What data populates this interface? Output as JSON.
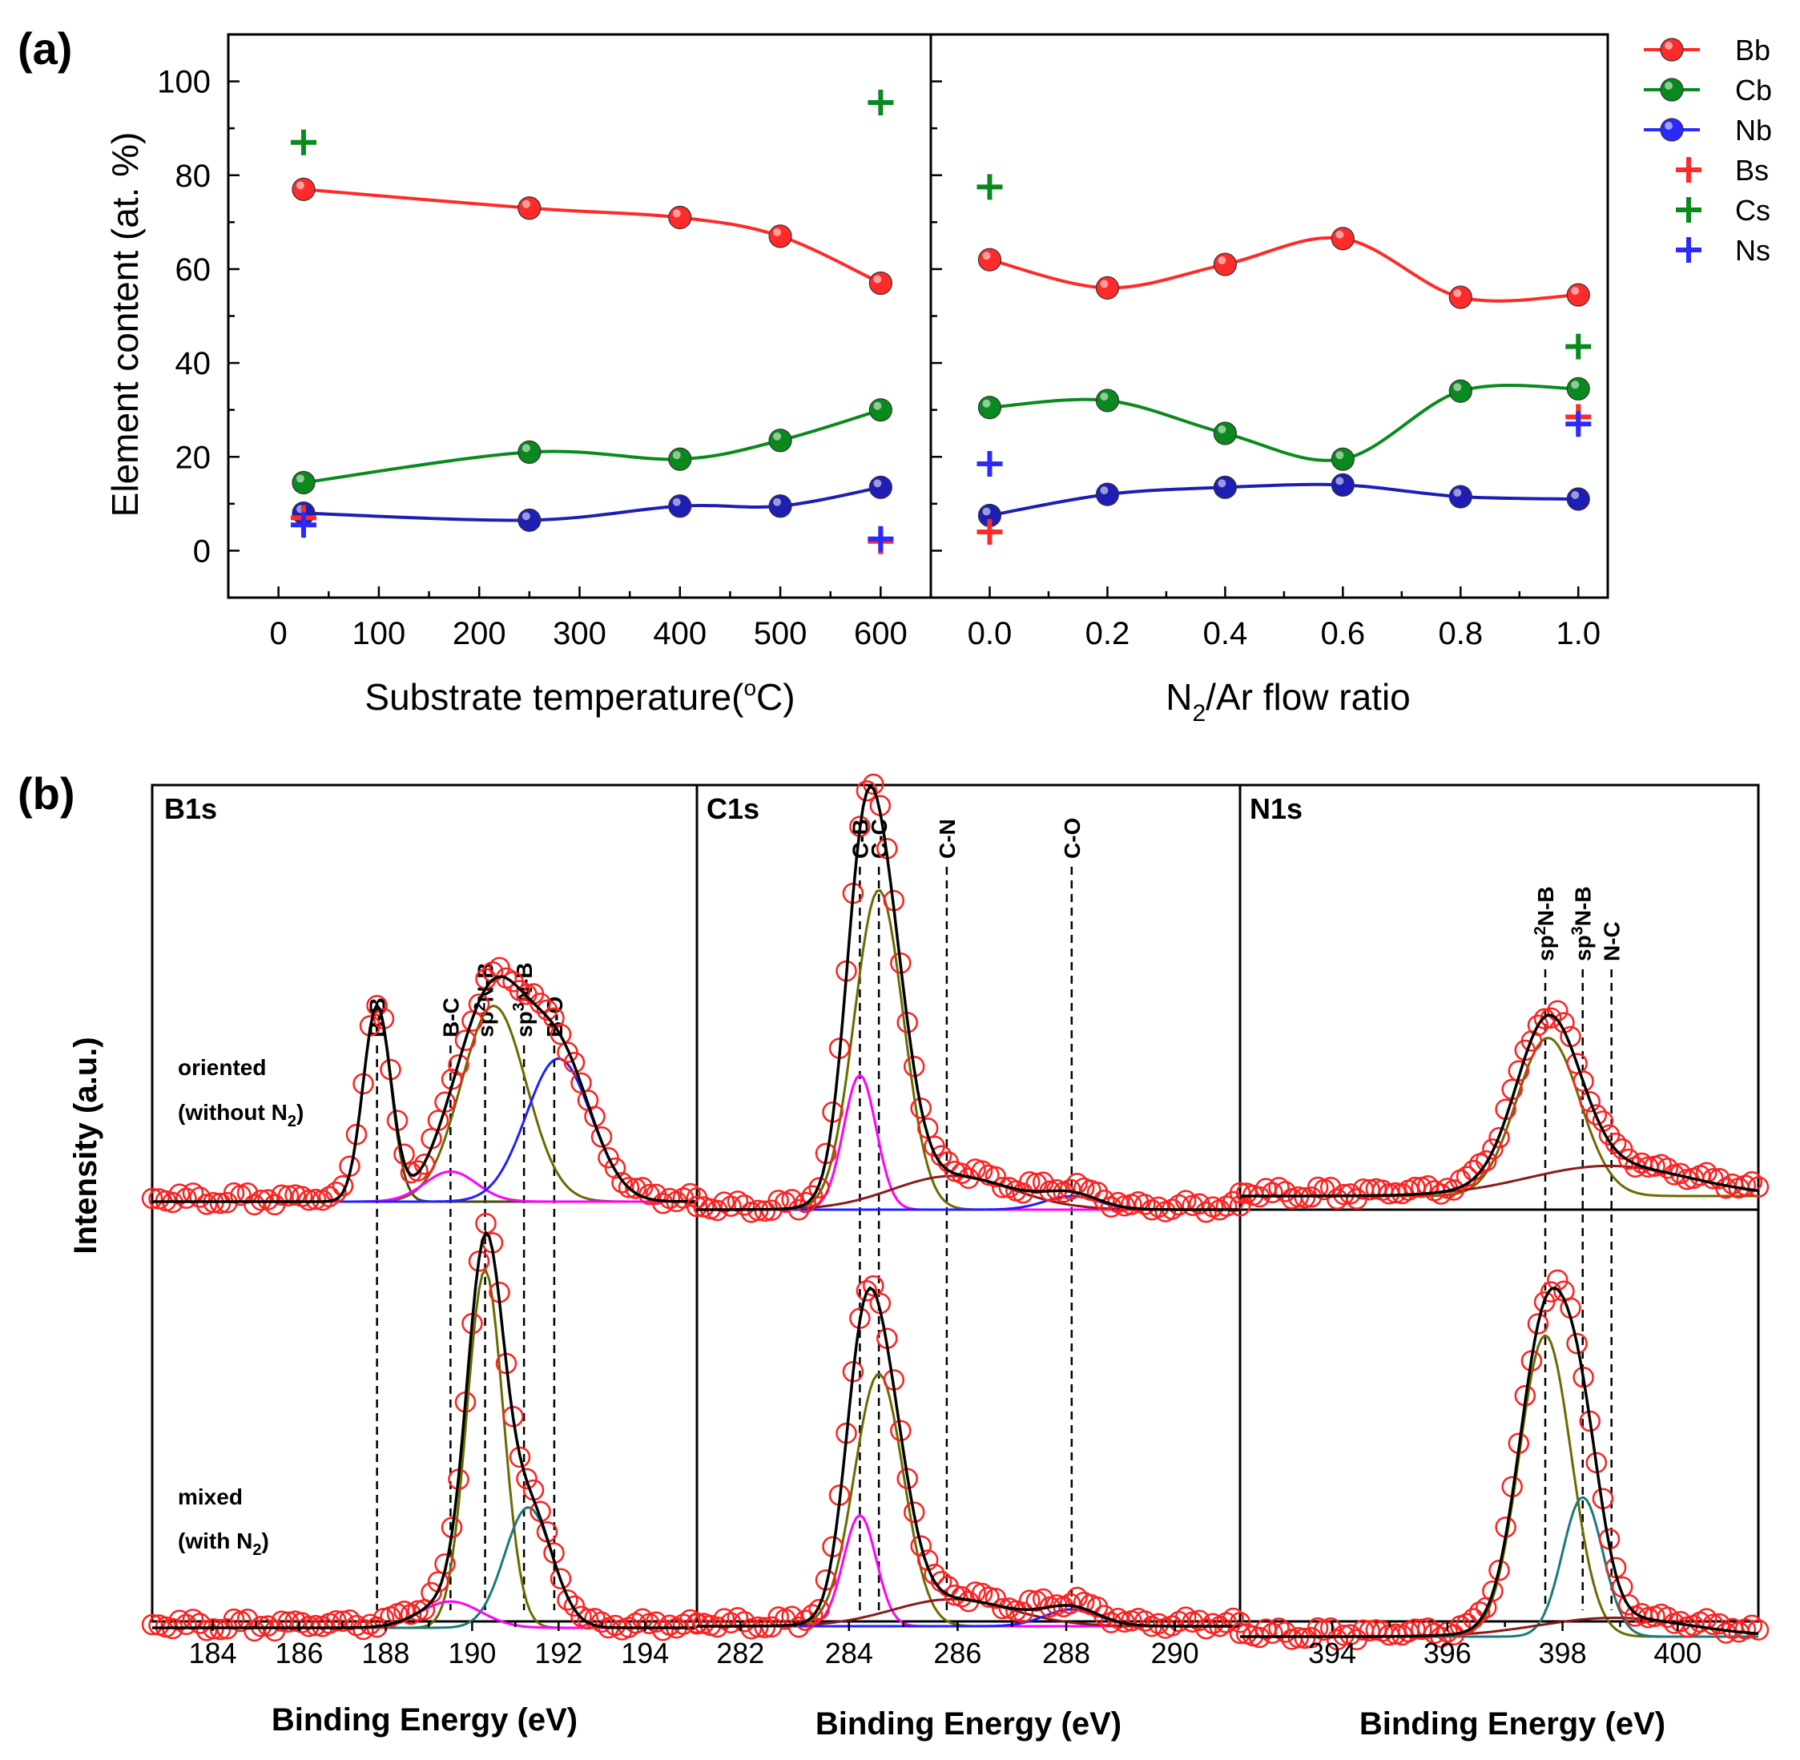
{
  "figure": {
    "panel_a_label": "(a)",
    "panel_b_label": "(b)"
  },
  "chart_data": [
    {
      "type": "line",
      "id": "a-left",
      "xlabel": "Substrate temperature(°C)",
      "xlabel_main": "Substrate temperature(",
      "xlabel_degree": "o",
      "xlabel_tail": "C)",
      "ylabel": "Element content (at. %)",
      "xlim": [
        -50,
        650
      ],
      "ylim": [
        -10,
        110
      ],
      "xticks": [
        0,
        100,
        200,
        300,
        400,
        500,
        600
      ],
      "yticks": [
        0,
        20,
        40,
        60,
        80,
        100
      ],
      "series": [
        {
          "name": "Bb",
          "marker": "circle",
          "color": "#ff2a2a",
          "x": [
            25,
            250,
            400,
            500,
            600
          ],
          "y": [
            77,
            73,
            71,
            67,
            57
          ]
        },
        {
          "name": "Cb",
          "marker": "circle",
          "color": "#0a8a1e",
          "x": [
            25,
            250,
            400,
            500,
            600
          ],
          "y": [
            14.5,
            21,
            19.5,
            23.5,
            30
          ]
        },
        {
          "name": "Nb",
          "marker": "circle",
          "color": "#1e1eb4",
          "x": [
            25,
            250,
            400,
            500,
            600
          ],
          "y": [
            8,
            6.5,
            9.5,
            9.5,
            13.5
          ]
        },
        {
          "name": "Bs",
          "marker": "plus",
          "color": "#ff2a2a",
          "x": [
            25,
            600
          ],
          "y": [
            7,
            2
          ]
        },
        {
          "name": "Cs",
          "marker": "plus",
          "color": "#0a8a1e",
          "x": [
            25,
            600
          ],
          "y": [
            87,
            95.5
          ]
        },
        {
          "name": "Ns",
          "marker": "plus",
          "color": "#2a2aff",
          "x": [
            25,
            600
          ],
          "y": [
            5.5,
            2.5
          ]
        }
      ]
    },
    {
      "type": "line",
      "id": "a-right",
      "xlabel": "N2/Ar flow ratio",
      "xlabel_n": "N",
      "xlabel_sub": "2",
      "xlabel_tail": "/Ar flow ratio",
      "xlim": [
        -0.1,
        1.05
      ],
      "ylim": [
        -10,
        110
      ],
      "xticks": [
        0.0,
        0.2,
        0.4,
        0.6,
        0.8,
        1.0
      ],
      "xtick_labels": [
        "0.0",
        "0.2",
        "0.4",
        "0.6",
        "0.8",
        "1.0"
      ],
      "series": [
        {
          "name": "Bb",
          "marker": "circle",
          "color": "#ff2a2a",
          "x": [
            0.0,
            0.2,
            0.4,
            0.6,
            0.8,
            1.0
          ],
          "y": [
            62,
            56,
            61,
            66.5,
            54,
            54.5
          ]
        },
        {
          "name": "Cb",
          "marker": "circle",
          "color": "#0a8a1e",
          "x": [
            0.0,
            0.2,
            0.4,
            0.6,
            0.8,
            1.0
          ],
          "y": [
            30.5,
            32,
            25,
            19.5,
            34,
            34.5
          ]
        },
        {
          "name": "Nb",
          "marker": "circle",
          "color": "#1e1eb4",
          "x": [
            0.0,
            0.2,
            0.4,
            0.6,
            0.8,
            1.0
          ],
          "y": [
            7.5,
            12,
            13.5,
            14,
            11.5,
            11
          ]
        },
        {
          "name": "Bs",
          "marker": "plus",
          "color": "#ff2a2a",
          "x": [
            0.0,
            1.0
          ],
          "y": [
            4,
            28.5
          ]
        },
        {
          "name": "Cs",
          "marker": "plus",
          "color": "#0a8a1e",
          "x": [
            0.0,
            1.0
          ],
          "y": [
            77.5,
            43.5
          ]
        },
        {
          "name": "Ns",
          "marker": "plus",
          "color": "#2a2aff",
          "x": [
            0.0,
            1.0
          ],
          "y": [
            18.5,
            27
          ]
        }
      ]
    },
    {
      "type": "line",
      "id": "b-b1s",
      "title": "B1s",
      "xlabel": "Binding Energy (eV)",
      "ylabel": "Intensity (a.u.)",
      "xlim": [
        182.6,
        195.2
      ],
      "xticks": [
        184,
        186,
        188,
        190,
        192,
        194
      ],
      "peaks": [
        {
          "label": "B-B",
          "energy": 187.8
        },
        {
          "label": "B-C",
          "energy": 189.5
        },
        {
          "label": "sp2N-B",
          "label_pre": "sp",
          "label_sup": "2",
          "label_post": "N-B",
          "energy": 190.3
        },
        {
          "label": "sp3N-B",
          "label_pre": "sp",
          "label_sup": "3",
          "label_post": "N-B",
          "energy": 191.2
        },
        {
          "label": "B-O",
          "energy": 191.9
        }
      ],
      "sample_top": {
        "line1": "oriented",
        "line2_pre": "(without N",
        "line2_sub": "2",
        "line2_post": ")"
      },
      "sample_bottom": {
        "line1": "mixed",
        "line2_pre": "(with N",
        "line2_sub": "2",
        "line2_post": ")"
      },
      "top_components": [
        {
          "center": 187.8,
          "height": 0.52,
          "width": 0.32,
          "color": "#4a4a10"
        },
        {
          "center": 190.5,
          "height": 0.52,
          "width": 0.75,
          "color": "#6b6b00"
        },
        {
          "center": 189.5,
          "height": 0.08,
          "width": 0.6,
          "color": "#ff00ff"
        },
        {
          "center": 192.0,
          "height": 0.38,
          "width": 0.75,
          "color": "#2020ff"
        }
      ],
      "bottom_components": [
        {
          "center": 190.3,
          "height": 0.95,
          "width": 0.42,
          "color": "#6b6b00"
        },
        {
          "center": 191.3,
          "height": 0.32,
          "width": 0.55,
          "color": "#1a7a7a"
        },
        {
          "center": 189.5,
          "height": 0.07,
          "width": 0.7,
          "color": "#ff00ff"
        }
      ]
    },
    {
      "type": "line",
      "id": "b-c1s",
      "title": "C1s",
      "xlabel": "Binding Energy (eV)",
      "xlim": [
        281.2,
        291.2
      ],
      "xticks": [
        282,
        284,
        286,
        288,
        290
      ],
      "peaks": [
        {
          "label": "C-B",
          "energy": 284.2
        },
        {
          "label": "C-C",
          "energy": 284.55
        },
        {
          "label": "C-N",
          "energy": 285.8
        },
        {
          "label": "C-O",
          "energy": 288.1
        }
      ],
      "top_components": [
        {
          "center": 284.55,
          "height": 0.95,
          "width": 0.45,
          "color": "#6b6b00"
        },
        {
          "center": 284.2,
          "height": 0.4,
          "width": 0.3,
          "color": "#ff00ff"
        },
        {
          "center": 285.9,
          "height": 0.1,
          "width": 1.1,
          "color": "#8b1a1a"
        },
        {
          "center": 288.1,
          "height": 0.04,
          "width": 0.5,
          "color": "#2020ff"
        }
      ],
      "bottom_components": [
        {
          "center": 284.55,
          "height": 0.75,
          "width": 0.45,
          "color": "#6b6b00"
        },
        {
          "center": 284.2,
          "height": 0.33,
          "width": 0.3,
          "color": "#ff00ff"
        },
        {
          "center": 285.9,
          "height": 0.08,
          "width": 1.1,
          "color": "#8b1a1a"
        },
        {
          "center": 288.1,
          "height": 0.05,
          "width": 0.5,
          "color": "#2020ff"
        }
      ]
    },
    {
      "type": "line",
      "id": "b-n1s",
      "title": "N1s",
      "xlabel": "Binding Energy (eV)",
      "xlim": [
        392.4,
        401.4
      ],
      "xticks": [
        394,
        396,
        398,
        400
      ],
      "peaks": [
        {
          "label": "sp2N-B",
          "label_pre": "sp",
          "label_sup": "2",
          "label_post": "N-B",
          "energy": 397.7
        },
        {
          "label": "sp3N-B",
          "label_pre": "sp",
          "label_sup": "3",
          "label_post": "N-B",
          "energy": 398.35
        },
        {
          "label": "N-C",
          "energy": 398.85
        }
      ],
      "top_components": [
        {
          "center": 397.75,
          "height": 0.42,
          "width": 0.55,
          "color": "#6b6b00"
        },
        {
          "center": 398.8,
          "height": 0.08,
          "width": 1.4,
          "color": "#8b1a1a"
        }
      ],
      "bottom_components": [
        {
          "center": 397.7,
          "height": 0.8,
          "width": 0.45,
          "color": "#6b6b00"
        },
        {
          "center": 398.35,
          "height": 0.37,
          "width": 0.35,
          "color": "#1a7a7a"
        },
        {
          "center": 398.9,
          "height": 0.05,
          "width": 1.3,
          "color": "#8b1a1a"
        }
      ]
    }
  ],
  "legend": [
    {
      "label": "Bb",
      "marker": "line-circle",
      "color": "#ff2a2a"
    },
    {
      "label": "Cb",
      "marker": "line-circle",
      "color": "#0a8a1e"
    },
    {
      "label": "Nb",
      "marker": "line-circle",
      "color": "#2a2aff"
    },
    {
      "label": "Bs",
      "marker": "plus",
      "color": "#ff2a2a"
    },
    {
      "label": "Cs",
      "marker": "plus",
      "color": "#0a8a1e"
    },
    {
      "label": "Ns",
      "marker": "plus",
      "color": "#2a2aff"
    }
  ]
}
